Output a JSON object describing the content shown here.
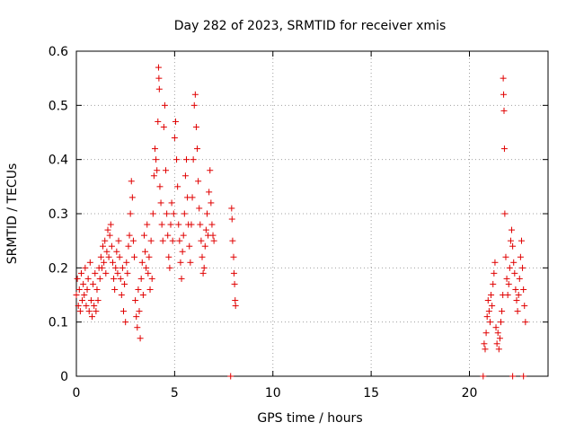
{
  "chart_data": {
    "type": "scatter",
    "title": "Day 282 of 2023, SRMTID for receiver xmis",
    "xlabel": "GPS time / hours",
    "ylabel": "SRMTID / TECUs",
    "xlim": [
      0,
      24
    ],
    "ylim": [
      0,
      0.6
    ],
    "xticks": [
      0,
      5,
      10,
      15,
      20
    ],
    "xtick_labels": [
      "0",
      "5",
      "10",
      "15",
      "20"
    ],
    "yticks": [
      0,
      0.1,
      0.2,
      0.3,
      0.4,
      0.5,
      0.6
    ],
    "ytick_labels": [
      "0",
      "0.1",
      "0.2",
      "0.3",
      "0.4",
      "0.5",
      "0.6"
    ],
    "grid": true,
    "marker": "+",
    "color": "#e00000",
    "series": [
      {
        "name": "SRMTID",
        "points": [
          [
            0.0,
            0.15
          ],
          [
            0.05,
            0.18
          ],
          [
            0.1,
            0.13
          ],
          [
            0.15,
            0.16
          ],
          [
            0.2,
            0.12
          ],
          [
            0.25,
            0.19
          ],
          [
            0.3,
            0.14
          ],
          [
            0.35,
            0.17
          ],
          [
            0.4,
            0.15
          ],
          [
            0.45,
            0.2
          ],
          [
            0.5,
            0.13
          ],
          [
            0.55,
            0.16
          ],
          [
            0.6,
            0.18
          ],
          [
            0.65,
            0.12
          ],
          [
            0.7,
            0.21
          ],
          [
            0.75,
            0.14
          ],
          [
            0.8,
            0.11
          ],
          [
            0.85,
            0.17
          ],
          [
            0.9,
            0.13
          ],
          [
            0.95,
            0.19
          ],
          [
            1.0,
            0.12
          ],
          [
            1.05,
            0.16
          ],
          [
            1.1,
            0.14
          ],
          [
            1.15,
            0.2
          ],
          [
            1.2,
            0.18
          ],
          [
            1.25,
            0.22
          ],
          [
            1.3,
            0.2
          ],
          [
            1.35,
            0.24
          ],
          [
            1.4,
            0.21
          ],
          [
            1.45,
            0.25
          ],
          [
            1.5,
            0.19
          ],
          [
            1.55,
            0.23
          ],
          [
            1.6,
            0.27
          ],
          [
            1.65,
            0.22
          ],
          [
            1.7,
            0.26
          ],
          [
            1.75,
            0.28
          ],
          [
            1.8,
            0.24
          ],
          [
            1.85,
            0.21
          ],
          [
            1.9,
            0.18
          ],
          [
            1.95,
            0.16
          ],
          [
            2.0,
            0.2
          ],
          [
            2.05,
            0.23
          ],
          [
            2.1,
            0.19
          ],
          [
            2.15,
            0.25
          ],
          [
            2.2,
            0.22
          ],
          [
            2.25,
            0.18
          ],
          [
            2.3,
            0.15
          ],
          [
            2.35,
            0.2
          ],
          [
            2.4,
            0.12
          ],
          [
            2.45,
            0.17
          ],
          [
            2.5,
            0.1
          ],
          [
            2.55,
            0.21
          ],
          [
            2.6,
            0.19
          ],
          [
            2.65,
            0.24
          ],
          [
            2.7,
            0.26
          ],
          [
            2.75,
            0.3
          ],
          [
            2.8,
            0.36
          ],
          [
            2.85,
            0.33
          ],
          [
            2.9,
            0.25
          ],
          [
            2.95,
            0.22
          ],
          [
            3.0,
            0.14
          ],
          [
            3.05,
            0.11
          ],
          [
            3.1,
            0.09
          ],
          [
            3.15,
            0.16
          ],
          [
            3.2,
            0.12
          ],
          [
            3.25,
            0.07
          ],
          [
            3.3,
            0.18
          ],
          [
            3.35,
            0.21
          ],
          [
            3.4,
            0.15
          ],
          [
            3.45,
            0.26
          ],
          [
            3.5,
            0.23
          ],
          [
            3.55,
            0.2
          ],
          [
            3.6,
            0.28
          ],
          [
            3.65,
            0.19
          ],
          [
            3.7,
            0.22
          ],
          [
            3.75,
            0.16
          ],
          [
            3.8,
            0.25
          ],
          [
            3.85,
            0.18
          ],
          [
            3.9,
            0.3
          ],
          [
            3.95,
            0.37
          ],
          [
            4.0,
            0.42
          ],
          [
            4.05,
            0.4
          ],
          [
            4.1,
            0.38
          ],
          [
            4.15,
            0.47
          ],
          [
            4.18,
            0.57
          ],
          [
            4.2,
            0.55
          ],
          [
            4.22,
            0.53
          ],
          [
            4.25,
            0.35
          ],
          [
            4.3,
            0.32
          ],
          [
            4.35,
            0.28
          ],
          [
            4.4,
            0.25
          ],
          [
            4.45,
            0.46
          ],
          [
            4.5,
            0.5
          ],
          [
            4.55,
            0.38
          ],
          [
            4.6,
            0.3
          ],
          [
            4.65,
            0.26
          ],
          [
            4.7,
            0.22
          ],
          [
            4.75,
            0.2
          ],
          [
            4.8,
            0.28
          ],
          [
            4.85,
            0.32
          ],
          [
            4.9,
            0.25
          ],
          [
            4.95,
            0.3
          ],
          [
            5.0,
            0.44
          ],
          [
            5.05,
            0.47
          ],
          [
            5.1,
            0.4
          ],
          [
            5.15,
            0.35
          ],
          [
            5.2,
            0.28
          ],
          [
            5.25,
            0.25
          ],
          [
            5.3,
            0.21
          ],
          [
            5.35,
            0.18
          ],
          [
            5.4,
            0.23
          ],
          [
            5.45,
            0.26
          ],
          [
            5.5,
            0.3
          ],
          [
            5.55,
            0.37
          ],
          [
            5.6,
            0.4
          ],
          [
            5.65,
            0.33
          ],
          [
            5.7,
            0.28
          ],
          [
            5.75,
            0.24
          ],
          [
            5.8,
            0.21
          ],
          [
            5.85,
            0.28
          ],
          [
            5.9,
            0.33
          ],
          [
            5.95,
            0.4
          ],
          [
            6.0,
            0.5
          ],
          [
            6.05,
            0.52
          ],
          [
            6.1,
            0.46
          ],
          [
            6.15,
            0.42
          ],
          [
            6.2,
            0.36
          ],
          [
            6.25,
            0.31
          ],
          [
            6.3,
            0.28
          ],
          [
            6.35,
            0.25
          ],
          [
            6.4,
            0.22
          ],
          [
            6.45,
            0.19
          ],
          [
            6.5,
            0.2
          ],
          [
            6.55,
            0.24
          ],
          [
            6.6,
            0.27
          ],
          [
            6.65,
            0.3
          ],
          [
            6.7,
            0.26
          ],
          [
            6.75,
            0.34
          ],
          [
            6.8,
            0.38
          ],
          [
            6.85,
            0.32
          ],
          [
            6.9,
            0.28
          ],
          [
            6.95,
            0.26
          ],
          [
            7.0,
            0.25
          ],
          [
            7.85,
            0.0
          ],
          [
            7.9,
            0.31
          ],
          [
            7.92,
            0.29
          ],
          [
            7.95,
            0.25
          ],
          [
            8.0,
            0.22
          ],
          [
            8.02,
            0.19
          ],
          [
            8.05,
            0.17
          ],
          [
            8.08,
            0.14
          ],
          [
            8.1,
            0.13
          ],
          [
            20.7,
            0.0
          ],
          [
            20.75,
            0.06
          ],
          [
            20.8,
            0.05
          ],
          [
            20.85,
            0.08
          ],
          [
            20.9,
            0.11
          ],
          [
            20.95,
            0.14
          ],
          [
            21.0,
            0.12
          ],
          [
            21.05,
            0.1
          ],
          [
            21.1,
            0.15
          ],
          [
            21.15,
            0.13
          ],
          [
            21.2,
            0.17
          ],
          [
            21.25,
            0.19
          ],
          [
            21.3,
            0.21
          ],
          [
            21.35,
            0.09
          ],
          [
            21.4,
            0.06
          ],
          [
            21.45,
            0.08
          ],
          [
            21.5,
            0.05
          ],
          [
            21.55,
            0.07
          ],
          [
            21.6,
            0.1
          ],
          [
            21.65,
            0.12
          ],
          [
            21.7,
            0.15
          ],
          [
            21.72,
            0.55
          ],
          [
            21.74,
            0.52
          ],
          [
            21.76,
            0.49
          ],
          [
            21.78,
            0.42
          ],
          [
            21.8,
            0.3
          ],
          [
            21.85,
            0.22
          ],
          [
            21.9,
            0.18
          ],
          [
            21.95,
            0.15
          ],
          [
            22.0,
            0.17
          ],
          [
            22.05,
            0.2
          ],
          [
            22.1,
            0.25
          ],
          [
            22.15,
            0.27
          ],
          [
            22.2,
            0.24
          ],
          [
            22.25,
            0.21
          ],
          [
            22.3,
            0.19
          ],
          [
            22.35,
            0.16
          ],
          [
            22.4,
            0.14
          ],
          [
            22.45,
            0.12
          ],
          [
            22.5,
            0.15
          ],
          [
            22.55,
            0.18
          ],
          [
            22.6,
            0.22
          ],
          [
            22.65,
            0.25
          ],
          [
            22.7,
            0.2
          ],
          [
            22.75,
            0.16
          ],
          [
            22.8,
            0.13
          ],
          [
            22.85,
            0.1
          ],
          [
            22.2,
            0.0
          ],
          [
            22.75,
            0.0
          ]
        ]
      }
    ]
  }
}
